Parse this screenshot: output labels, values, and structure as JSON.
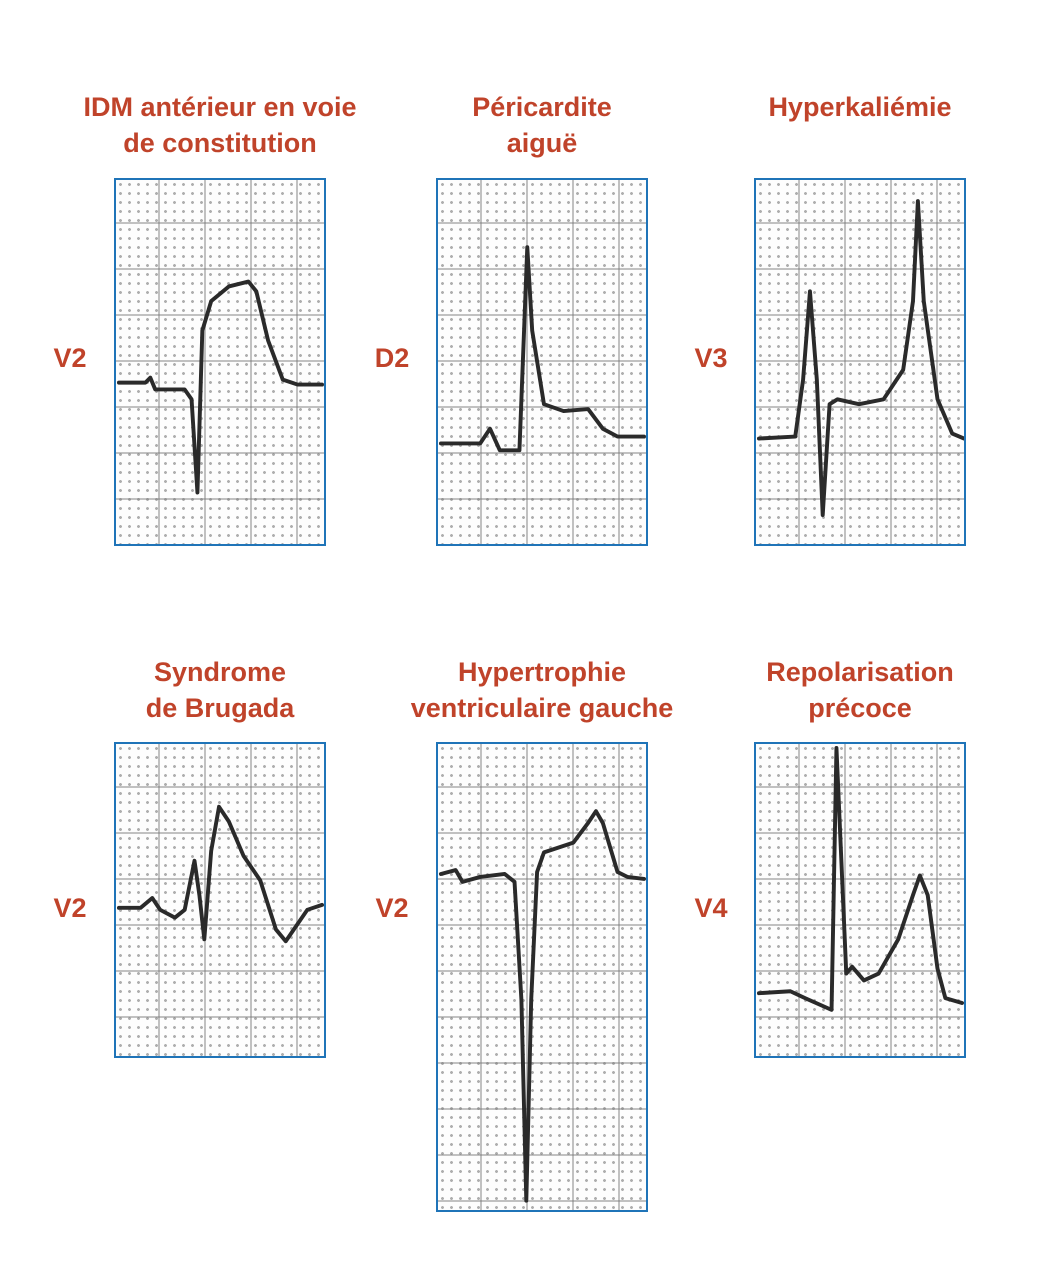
{
  "panels": [
    {
      "title_1": "IDM antérieur en voie",
      "title_2": "de constitution",
      "lead": "V2"
    },
    {
      "title_1": "Péricardite",
      "title_2": "aiguë",
      "lead": "D2"
    },
    {
      "title_1": "Hyperkaliémie",
      "title_2": "",
      "lead": "V3"
    },
    {
      "title_1": "Syndrome",
      "title_2": "de Brugada",
      "lead": "V2"
    },
    {
      "title_1": "Hypertrophie",
      "title_2": "ventriculaire gauche",
      "lead": "V2"
    },
    {
      "title_1": "Repolarisation",
      "title_2": "précoce",
      "lead": "V4"
    }
  ],
  "colors": {
    "title": "#c0432a",
    "frame": "#1f74b8",
    "trace": "#2a2a2a"
  }
}
